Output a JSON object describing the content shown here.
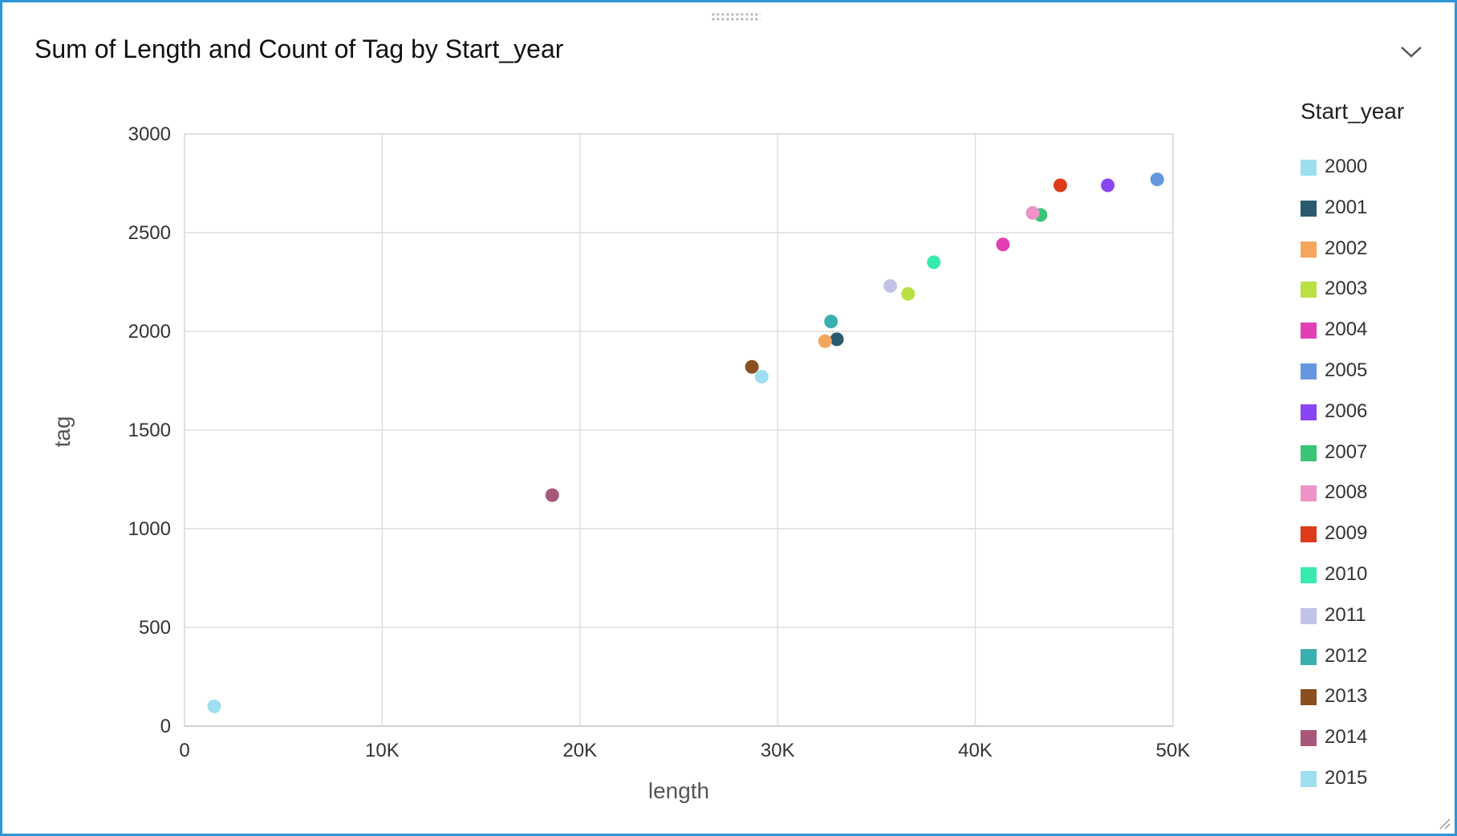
{
  "panel": {
    "title": "Sum of Length and Count of Tag by Start_year"
  },
  "icons": {
    "menu": "chevron-down-icon",
    "drag": "drag-handle-icon",
    "resize": "resize-corner-icon"
  },
  "legend": {
    "title": "Start_year",
    "items": [
      {
        "label": "2000",
        "color": "#9ddff0"
      },
      {
        "label": "2001",
        "color": "#2a5a6e"
      },
      {
        "label": "2002",
        "color": "#f4a65c"
      },
      {
        "label": "2003",
        "color": "#b9e045"
      },
      {
        "label": "2004",
        "color": "#e23fb5"
      },
      {
        "label": "2005",
        "color": "#6497e0"
      },
      {
        "label": "2006",
        "color": "#8945f2"
      },
      {
        "label": "2007",
        "color": "#3ac477"
      },
      {
        "label": "2008",
        "color": "#ef93c7"
      },
      {
        "label": "2009",
        "color": "#de3b1b"
      },
      {
        "label": "2010",
        "color": "#36ebab"
      },
      {
        "label": "2011",
        "color": "#c2c3e6"
      },
      {
        "label": "2012",
        "color": "#3aafb0"
      },
      {
        "label": "2013",
        "color": "#8a4f1f"
      },
      {
        "label": "2014",
        "color": "#a7587a"
      },
      {
        "label": "2015",
        "color": "#9ddff0"
      }
    ]
  },
  "chart_data": {
    "type": "scatter",
    "title": "Sum of Length and Count of Tag by Start_year",
    "xlabel": "length",
    "ylabel": "tag",
    "xlim": [
      0,
      50000
    ],
    "ylim": [
      0,
      3000
    ],
    "x_ticks": [
      0,
      10000,
      20000,
      30000,
      40000,
      50000
    ],
    "x_tick_labels": [
      "0",
      "10K",
      "20K",
      "30K",
      "40K",
      "50K"
    ],
    "y_ticks": [
      0,
      500,
      1000,
      1500,
      2000,
      2500,
      3000
    ],
    "y_tick_labels": [
      "0",
      "500",
      "1000",
      "1500",
      "2000",
      "2500",
      "3000"
    ],
    "grid": true,
    "legend_position": "right",
    "series": [
      {
        "name": "2000",
        "color": "#9ddff0",
        "x": [
          1500
        ],
        "y": [
          100
        ]
      },
      {
        "name": "2001",
        "color": "#2a5a6e",
        "x": [
          33000
        ],
        "y": [
          1960
        ]
      },
      {
        "name": "2002",
        "color": "#f4a65c",
        "x": [
          32400
        ],
        "y": [
          1950
        ]
      },
      {
        "name": "2003",
        "color": "#b9e045",
        "x": [
          36600
        ],
        "y": [
          2190
        ]
      },
      {
        "name": "2004",
        "color": "#e23fb5",
        "x": [
          41400
        ],
        "y": [
          2440
        ]
      },
      {
        "name": "2005",
        "color": "#6497e0",
        "x": [
          49200
        ],
        "y": [
          2770
        ]
      },
      {
        "name": "2006",
        "color": "#8945f2",
        "x": [
          46700
        ],
        "y": [
          2740
        ]
      },
      {
        "name": "2007",
        "color": "#3ac477",
        "x": [
          43300
        ],
        "y": [
          2590
        ]
      },
      {
        "name": "2008",
        "color": "#ef93c7",
        "x": [
          42900
        ],
        "y": [
          2600
        ]
      },
      {
        "name": "2009",
        "color": "#de3b1b",
        "x": [
          44300
        ],
        "y": [
          2740
        ]
      },
      {
        "name": "2010",
        "color": "#36ebab",
        "x": [
          37900
        ],
        "y": [
          2350
        ]
      },
      {
        "name": "2011",
        "color": "#c2c3e6",
        "x": [
          35700
        ],
        "y": [
          2230
        ]
      },
      {
        "name": "2012",
        "color": "#3aafb0",
        "x": [
          32700
        ],
        "y": [
          2050
        ]
      },
      {
        "name": "2013",
        "color": "#8a4f1f",
        "x": [
          28700
        ],
        "y": [
          1820
        ]
      },
      {
        "name": "2014",
        "color": "#a7587a",
        "x": [
          18600
        ],
        "y": [
          1170
        ]
      },
      {
        "name": "2015",
        "color": "#9ddff0",
        "x": [
          29200
        ],
        "y": [
          1770
        ]
      }
    ]
  }
}
